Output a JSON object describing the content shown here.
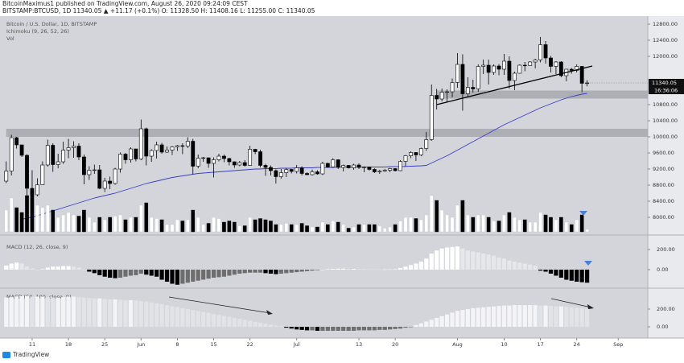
{
  "header": {
    "publisher": "BitcoinMaximus1 published on TradingView.com, August 26, 2020 09:24:09 CEST",
    "symbol": "BITSTAMP:BTCUSD, 1D  11340.05 ▲ +11.17 (+0.1%) O: 11328.50 H: 11408.16 L: 11255.00 C: 11340.05"
  },
  "chart_data": [
    {
      "type": "candlestick",
      "title": "Bitcoin / U.S. Dollar, 1D, BITSTAMP",
      "indicators": [
        "Ichimoku (9, 26, 52, 26)",
        "Vol"
      ],
      "open": [
        8900,
        9150,
        9980,
        9800,
        9540,
        8720,
        8560,
        8810,
        9300,
        9790,
        9310,
        9380,
        9670,
        9730,
        9770,
        9500,
        9060,
        9170,
        9180,
        8720,
        8900,
        8840,
        9200,
        9570,
        9430,
        9700,
        9450,
        10200,
        9520,
        9660,
        9800,
        9620,
        9670,
        9750,
        9780,
        9770,
        9890,
        9270,
        9470,
        9480,
        9340,
        9430,
        9520,
        9460,
        9380,
        9300,
        9360,
        9290,
        9690,
        9630,
        9290,
        9240,
        9160,
        9010,
        9110,
        9190,
        9140,
        9230,
        9090,
        9060,
        9130,
        9080,
        9340,
        9250,
        9430,
        9240,
        9290,
        9230,
        9300,
        9240,
        9250,
        9190,
        9130,
        9150,
        9170,
        9210,
        9160,
        9390,
        9530,
        9610,
        9550,
        9710,
        9930,
        11030,
        10940,
        11110,
        11120,
        11350,
        11800,
        11070,
        11230,
        11190,
        11750,
        11780,
        11600,
        11760,
        11680,
        11880,
        11400,
        11580,
        11780,
        11770,
        11860,
        11910,
        12290,
        11960,
        11750,
        11860,
        11520,
        11680,
        11650,
        11750,
        11328.5
      ],
      "high": [
        9390,
        10050,
        10000,
        9800,
        9570,
        9170,
        8970,
        9390,
        9930,
        9840,
        9580,
        9880,
        9950,
        9890,
        9840,
        9560,
        9270,
        9310,
        9300,
        8980,
        9010,
        9230,
        9610,
        9600,
        9740,
        9700,
        10430,
        10230,
        9690,
        9880,
        9850,
        9760,
        9770,
        9800,
        9840,
        9990,
        9950,
        9560,
        9500,
        9480,
        9490,
        9580,
        9560,
        9480,
        9390,
        9400,
        9420,
        9780,
        9700,
        9680,
        9330,
        9290,
        9190,
        9200,
        9230,
        9200,
        9300,
        9270,
        9120,
        9190,
        9170,
        9380,
        9360,
        9470,
        9440,
        9310,
        9300,
        9330,
        9340,
        9270,
        9250,
        9220,
        9180,
        9200,
        9230,
        9220,
        9420,
        9550,
        9640,
        9620,
        9730,
        10120,
        11300,
        11190,
        11200,
        11180,
        11450,
        12080,
        12050,
        11480,
        11420,
        11800,
        11920,
        11920,
        11800,
        11810,
        12060,
        12000,
        11620,
        11800,
        11860,
        11880,
        11940,
        12480,
        12380,
        12010,
        11880,
        11880,
        11690,
        11710,
        11800,
        11760,
        11408.16
      ],
      "low": [
        8850,
        9040,
        9710,
        9500,
        8200,
        8540,
        8520,
        8800,
        9260,
        9130,
        9220,
        9330,
        9470,
        9480,
        9420,
        8820,
        8930,
        9080,
        8700,
        8630,
        8700,
        8810,
        9110,
        9330,
        9360,
        9390,
        9420,
        9290,
        9380,
        9460,
        9580,
        9600,
        9550,
        9650,
        9570,
        9720,
        9070,
        9220,
        9380,
        9230,
        8990,
        9390,
        9370,
        9290,
        9230,
        9270,
        9260,
        9280,
        9570,
        9240,
        9030,
        9040,
        8840,
        8960,
        9000,
        9090,
        9090,
        9040,
        9050,
        9040,
        9060,
        9050,
        9230,
        9230,
        9200,
        9140,
        9210,
        9180,
        9200,
        9120,
        9160,
        9100,
        9080,
        9130,
        9120,
        9140,
        9150,
        9270,
        9470,
        9400,
        9520,
        9650,
        9900,
        10680,
        10880,
        10850,
        10980,
        11220,
        10650,
        11000,
        11100,
        11120,
        11560,
        11300,
        11540,
        11530,
        11540,
        11200,
        11160,
        11570,
        11630,
        11770,
        11700,
        11850,
        11820,
        11600,
        11560,
        11480,
        11380,
        11570,
        11600,
        11110,
        11255
      ],
      "close": [
        9150,
        9980,
        9800,
        9540,
        8720,
        8560,
        8810,
        9300,
        9790,
        9310,
        9380,
        9670,
        9730,
        9770,
        9500,
        9060,
        9170,
        9180,
        8720,
        8900,
        8840,
        9200,
        9570,
        9430,
        9700,
        9450,
        10200,
        9520,
        9660,
        9800,
        9620,
        9670,
        9750,
        9780,
        9770,
        9890,
        9270,
        9470,
        9480,
        9340,
        9430,
        9520,
        9460,
        9380,
        9300,
        9360,
        9290,
        9690,
        9630,
        9290,
        9240,
        9160,
        9010,
        9110,
        9190,
        9140,
        9230,
        9090,
        9060,
        9130,
        9080,
        9340,
        9250,
        9430,
        9240,
        9290,
        9230,
        9300,
        9240,
        9250,
        9190,
        9130,
        9150,
        9170,
        9210,
        9160,
        9390,
        9530,
        9610,
        9550,
        9710,
        9930,
        11030,
        10940,
        11110,
        11120,
        11350,
        11800,
        11070,
        11230,
        11190,
        11750,
        11780,
        11600,
        11760,
        11680,
        11880,
        11400,
        11580,
        11780,
        11770,
        11860,
        11910,
        12290,
        11960,
        11750,
        11860,
        11520,
        11680,
        11650,
        11750,
        11330,
        11340.05
      ],
      "colors": {
        "up": "#ffffff",
        "down": "#000000",
        "border": "#000000"
      },
      "ylim": [
        7600,
        13000
      ],
      "yticks": [
        {
          "value": 8000,
          "label": "8000.00"
        },
        {
          "value": 8400,
          "label": "8400.00"
        },
        {
          "value": 8800,
          "label": "8800.00"
        },
        {
          "value": 9200,
          "label": "9200.00"
        },
        {
          "value": 9600,
          "label": "9600.00"
        },
        {
          "value": 10000,
          "label": "10000.00"
        },
        {
          "value": 10400,
          "label": "10400.00"
        },
        {
          "value": 10800,
          "label": "10800.00"
        },
        {
          "value": 12000,
          "label": "12000.00"
        },
        {
          "value": 12400,
          "label": "12400.00"
        },
        {
          "value": 12800,
          "label": "12800.00"
        }
      ],
      "xlim": [
        -1.2,
        123.7
      ],
      "xticks": [
        {
          "value": 5,
          "label": "11"
        },
        {
          "value": 12,
          "label": "18"
        },
        {
          "value": 19,
          "label": "25"
        },
        {
          "value": 26,
          "label": "Jun"
        },
        {
          "value": 33,
          "label": "8"
        },
        {
          "value": 40,
          "label": "15"
        },
        {
          "value": 47,
          "label": "22"
        },
        {
          "value": 56,
          "label": "Jul"
        },
        {
          "value": 68,
          "label": "13"
        },
        {
          "value": 75,
          "label": "20"
        },
        {
          "value": 87,
          "label": "Aug"
        },
        {
          "value": 96,
          "label": "10"
        },
        {
          "value": 103,
          "label": "17"
        },
        {
          "value": 110,
          "label": "24"
        },
        {
          "value": 118,
          "label": "Sep"
        }
      ],
      "ma": {
        "color": "#3a3fc4",
        "values": [
          null,
          null,
          null,
          7950,
          7980,
          8010,
          8040,
          8080,
          8120,
          8160,
          8200,
          8240,
          8280,
          8320,
          8360,
          8400,
          8440,
          8480,
          8510,
          8540,
          8570,
          8600,
          8640,
          8680,
          8720,
          8760,
          8800,
          8840,
          8870,
          8900,
          8930,
          8960,
          8990,
          9010,
          9030,
          9050,
          9070,
          9090,
          9100,
          9110,
          9120,
          9130,
          9140,
          9150,
          9160,
          9170,
          9180,
          9190,
          9200,
          9200,
          9210,
          9210,
          9210,
          9220,
          9220,
          9220,
          9230,
          9230,
          9230,
          9230,
          9240,
          9240,
          9240,
          9240,
          9250,
          9250,
          9250,
          9250,
          9250,
          9250,
          9250,
          9250,
          9250,
          9250,
          9260,
          9260,
          9260,
          9265,
          9270,
          9275,
          9280,
          9290,
          9350,
          9410,
          9470,
          9530,
          9600,
          9670,
          9740,
          9810,
          9880,
          9950,
          10020,
          10090,
          10160,
          10230,
          10300,
          10360,
          10420,
          10480,
          10540,
          10600,
          10660,
          10720,
          10770,
          10820,
          10870,
          10920,
          10960,
          11000,
          11030,
          11060,
          11080
        ]
      },
      "zones": [
        {
          "from": 0,
          "low": 10000,
          "high": 10200
        },
        {
          "from": 83,
          "low": 10950,
          "high": 11150
        }
      ],
      "zone_color": "#a6a8ae",
      "trendline": {
        "x": [
          83,
          113
        ],
        "y": [
          10800,
          11760
        ]
      },
      "countdown": "16:36:06"
    },
    {
      "type": "volume",
      "values": [
        18,
        28,
        20,
        16,
        30,
        34,
        22,
        20,
        22,
        18,
        12,
        14,
        16,
        14,
        13,
        18,
        12,
        8,
        12,
        10,
        12,
        13,
        14,
        10,
        12,
        12,
        22,
        24,
        12,
        11,
        10,
        6,
        6,
        10,
        9,
        10,
        18,
        12,
        6,
        7,
        12,
        11,
        8,
        9,
        8,
        5,
        5,
        12,
        10,
        11,
        10,
        9,
        6,
        6,
        7,
        6,
        6,
        7,
        5,
        4,
        4,
        8,
        6,
        9,
        8,
        6,
        3,
        4,
        6,
        6,
        6,
        6,
        5,
        3,
        4,
        6,
        9,
        12,
        12,
        11,
        10,
        14,
        30,
        26,
        18,
        14,
        12,
        22,
        26,
        14,
        12,
        14,
        14,
        12,
        9,
        9,
        14,
        16,
        12,
        10,
        10,
        8,
        8,
        16,
        14,
        12,
        10,
        12,
        8,
        6,
        10,
        14,
        2
      ],
      "ylim": [
        0,
        40
      ]
    },
    {
      "type": "histogram",
      "title": "MACD (12, 26, close, 9)",
      "values": [
        40,
        60,
        70,
        60,
        30,
        10,
        0,
        5,
        20,
        30,
        30,
        35,
        35,
        30,
        20,
        0,
        -20,
        -35,
        -55,
        -70,
        -80,
        -85,
        -80,
        -70,
        -60,
        -55,
        -40,
        -50,
        -60,
        -70,
        -100,
        -120,
        -140,
        -150,
        -140,
        -130,
        -120,
        -110,
        -100,
        -90,
        -80,
        -75,
        -70,
        -60,
        -50,
        -40,
        -35,
        -30,
        -30,
        -30,
        -35,
        -40,
        -45,
        -40,
        -35,
        -30,
        -25,
        -20,
        -15,
        -10,
        -5,
        0,
        5,
        8,
        10,
        10,
        8,
        8,
        6,
        5,
        4,
        3,
        2,
        2,
        3,
        5,
        15,
        30,
        45,
        60,
        80,
        110,
        160,
        190,
        210,
        220,
        225,
        230,
        210,
        190,
        180,
        170,
        160,
        150,
        140,
        120,
        110,
        90,
        80,
        70,
        60,
        50,
        40,
        -10,
        -20,
        -40,
        -60,
        -80,
        -100,
        -110,
        -120,
        -125,
        -130
      ],
      "ylim": [
        -168,
        328
      ],
      "yticks": [
        {
          "value": 200,
          "label": "200.00"
        },
        {
          "value": 0,
          "label": "0.00"
        }
      ],
      "colors": {
        "pos_up": "#ffffff",
        "pos_down": "#e6e7ea",
        "neg_down": "#000000",
        "neg_up": "#6e6e6e"
      }
    },
    {
      "type": "histogram",
      "title": "MACD (50, 100, close, 9)",
      "values": [
        330,
        335,
        340,
        345,
        345,
        340,
        340,
        340,
        335,
        330,
        330,
        335,
        340,
        340,
        335,
        330,
        325,
        320,
        320,
        315,
        310,
        310,
        305,
        300,
        300,
        295,
        290,
        285,
        275,
        265,
        255,
        244,
        233,
        222,
        211,
        200,
        189,
        178,
        167,
        156,
        145,
        134,
        123,
        112,
        101,
        90,
        79,
        68,
        57,
        46,
        35,
        24,
        15,
        8,
        -10,
        -20,
        -30,
        -35,
        -40,
        -40,
        -45,
        -45,
        -45,
        -45,
        -45,
        -45,
        -45,
        -45,
        -40,
        -40,
        -40,
        -40,
        -35,
        -35,
        -30,
        -25,
        -20,
        -10,
        -5,
        20,
        40,
        60,
        80,
        100,
        120,
        140,
        160,
        180,
        190,
        200,
        210,
        215,
        220,
        225,
        230,
        235,
        240,
        240,
        245,
        245,
        245,
        245,
        245,
        240,
        240,
        235,
        230,
        230,
        225,
        220,
        215,
        210,
        205
      ],
      "ylim": [
        -118,
        418
      ],
      "yticks": [
        {
          "value": 200,
          "label": "200.00"
        },
        {
          "value": 0,
          "label": "0.00"
        }
      ],
      "colors": {
        "pos_up": "#f4f4f6",
        "pos_down": "#e2e3e6",
        "neg_down": "#000000",
        "neg_up": "#6e6e6e"
      }
    }
  ],
  "footer": {
    "brand": "TradingView"
  }
}
